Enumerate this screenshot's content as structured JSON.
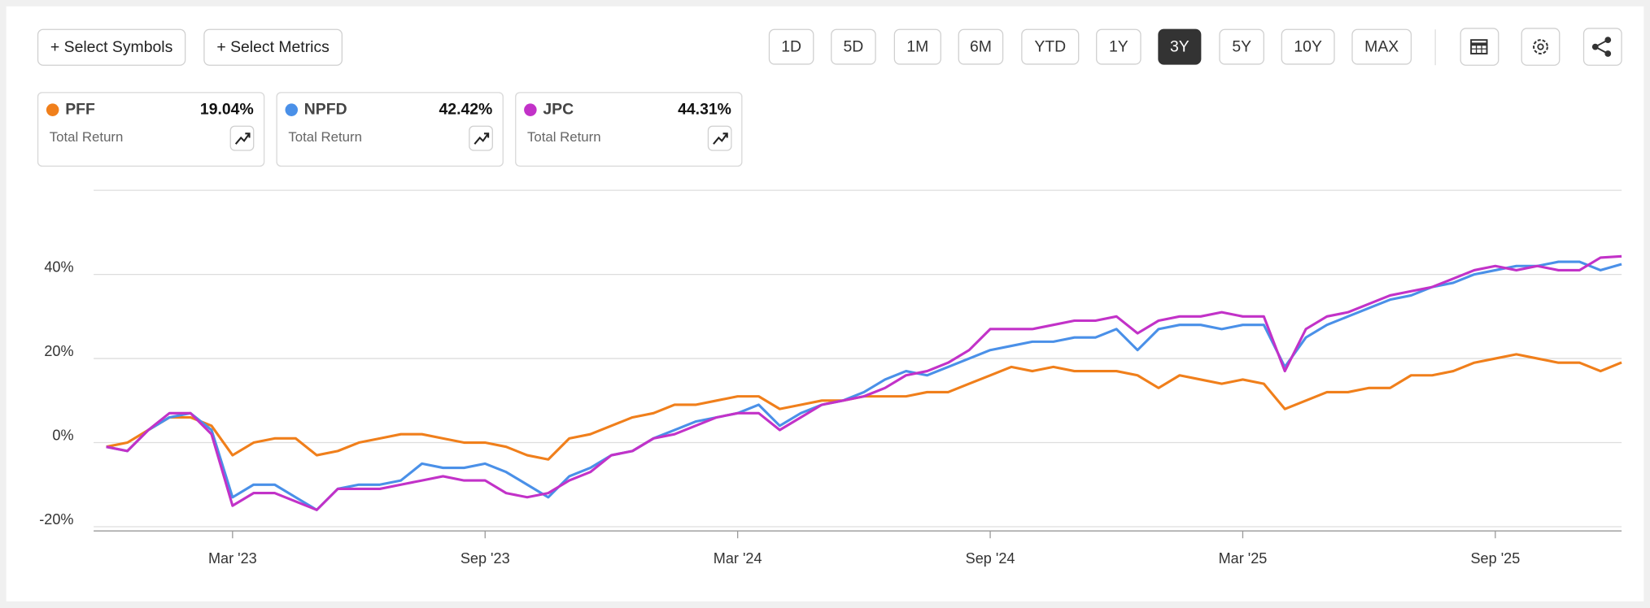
{
  "toolbar": {
    "symbols_button": "+ Select Symbols",
    "metrics_button": "+ Select Metrics",
    "periods": [
      "1D",
      "5D",
      "1M",
      "6M",
      "YTD",
      "1Y",
      "3Y",
      "5Y",
      "10Y",
      "MAX"
    ],
    "active_period": "3Y"
  },
  "chart_data": {
    "type": "line",
    "metric": "Total Return",
    "categories": [
      null,
      null,
      null,
      null,
      null,
      null,
      "Mar '23",
      null,
      null,
      null,
      null,
      null,
      null,
      null,
      null,
      null,
      null,
      null,
      "Sep '23",
      null,
      null,
      null,
      null,
      null,
      null,
      null,
      null,
      null,
      null,
      null,
      "Mar '24",
      null,
      null,
      null,
      null,
      null,
      null,
      null,
      null,
      null,
      null,
      null,
      "Sep '24",
      null,
      null,
      null,
      null,
      null,
      null,
      null,
      null,
      null,
      null,
      null,
      "Mar '25",
      null,
      null,
      null,
      null,
      null,
      null,
      null,
      null,
      null,
      null,
      null,
      "Sep '25",
      null,
      null,
      null,
      null,
      null,
      null
    ],
    "ylim": [
      -21,
      60
    ],
    "yticks": [
      {
        "value": -20,
        "label": "-20%"
      },
      {
        "value": 0,
        "label": "0%"
      },
      {
        "value": 20,
        "label": "20%"
      },
      {
        "value": 40,
        "label": "40%"
      }
    ],
    "grid": true,
    "series": [
      {
        "name": "PFF",
        "color": "#f07f1b",
        "total_return": "19.04%",
        "values": [
          -1,
          0,
          3,
          6,
          6,
          4,
          -3,
          0,
          1,
          1,
          -3,
          -2,
          0,
          1,
          2,
          2,
          1,
          0,
          0,
          -1,
          -3,
          -4,
          1,
          2,
          4,
          6,
          7,
          9,
          9,
          10,
          11,
          11,
          8,
          9,
          10,
          10,
          11,
          11,
          11,
          12,
          12,
          14,
          16,
          18,
          17,
          18,
          17,
          17,
          17,
          16,
          13,
          16,
          15,
          14,
          15,
          14,
          8,
          10,
          12,
          12,
          13,
          13,
          16,
          16,
          17,
          19,
          20,
          21,
          20,
          19,
          19,
          17,
          19.04
        ]
      },
      {
        "name": "NPFD",
        "color": "#4a90e8",
        "total_return": "42.42%",
        "values": [
          -1,
          -2,
          3,
          6,
          7,
          3,
          -13,
          -10,
          -10,
          -13,
          -16,
          -11,
          -10,
          -10,
          -9,
          -5,
          -6,
          -6,
          -5,
          -7,
          -10,
          -13,
          -8,
          -6,
          -3,
          -2,
          1,
          3,
          5,
          6,
          7,
          9,
          4,
          7,
          9,
          10,
          12,
          15,
          17,
          16,
          18,
          20,
          22,
          23,
          24,
          24,
          25,
          25,
          27,
          22,
          27,
          28,
          28,
          27,
          28,
          28,
          18,
          25,
          28,
          30,
          32,
          34,
          35,
          37,
          38,
          40,
          41,
          42,
          42,
          43,
          43,
          41,
          42.42
        ]
      },
      {
        "name": "JPC",
        "color": "#c232c8",
        "total_return": "44.31%",
        "values": [
          -1,
          -2,
          3,
          7,
          7,
          2,
          -15,
          -12,
          -12,
          -14,
          -16,
          -11,
          -11,
          -11,
          -10,
          -9,
          -8,
          -9,
          -9,
          -12,
          -13,
          -12,
          -9,
          -7,
          -3,
          -2,
          1,
          2,
          4,
          6,
          7,
          7,
          3,
          6,
          9,
          10,
          11,
          13,
          16,
          17,
          19,
          22,
          27,
          27,
          27,
          28,
          29,
          29,
          30,
          26,
          29,
          30,
          30,
          31,
          30,
          30,
          17,
          27,
          30,
          31,
          33,
          35,
          36,
          37,
          39,
          41,
          42,
          41,
          42,
          41,
          41,
          44,
          44.31
        ]
      }
    ]
  }
}
